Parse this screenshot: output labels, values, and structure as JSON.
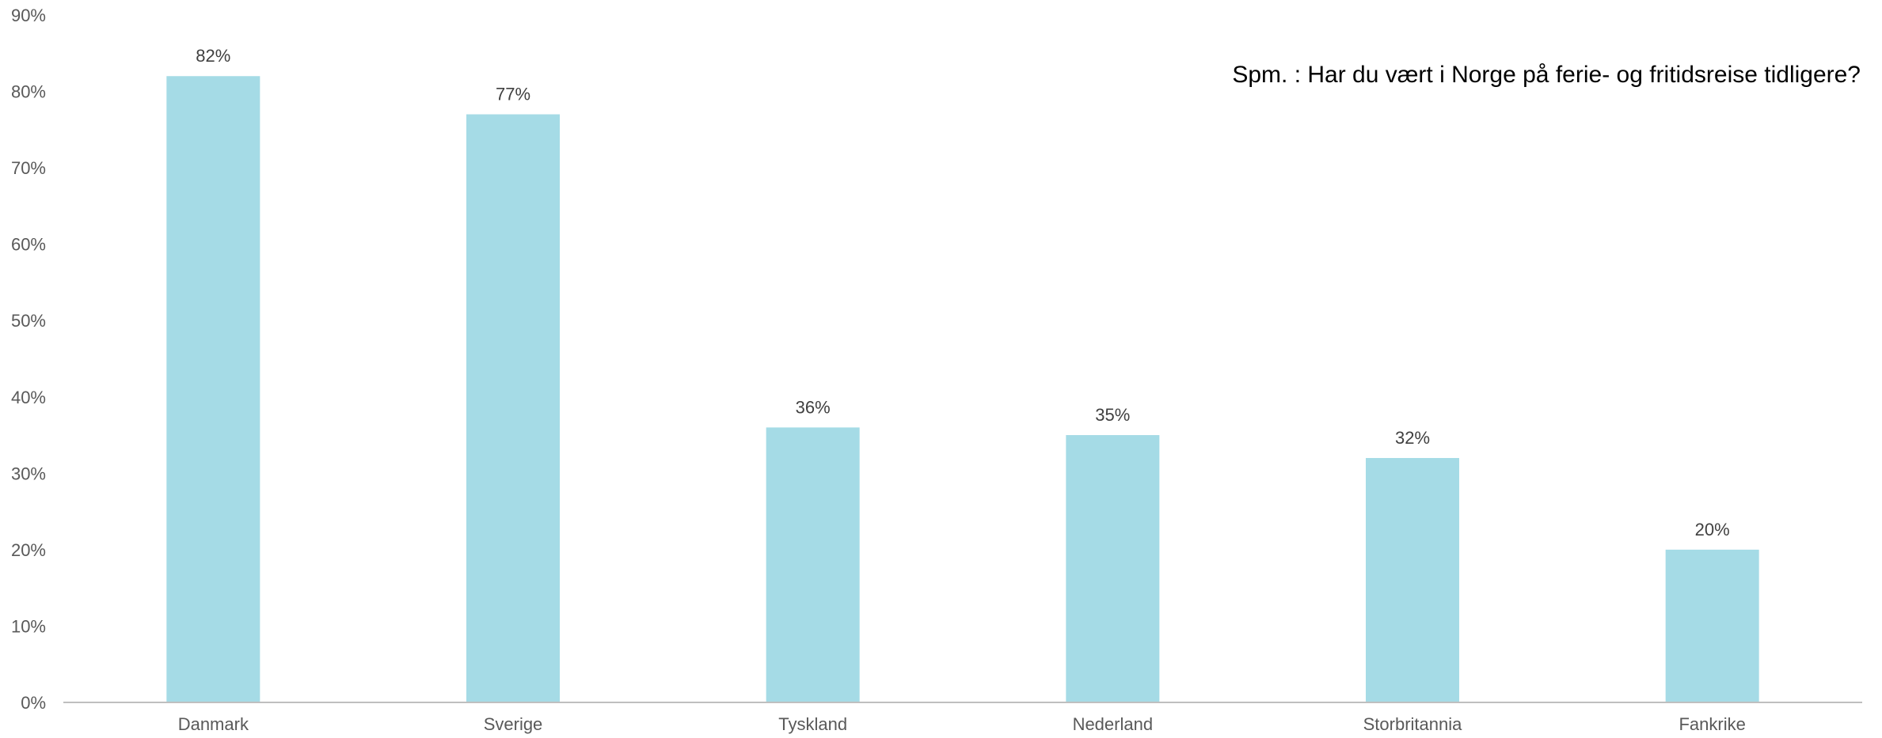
{
  "chart_data": {
    "type": "bar",
    "title": "Spm. : Har du vært i Norge på ferie- og fritidsreise tidligere?",
    "xlabel": "",
    "ylabel": "",
    "categories": [
      "Danmark",
      "Sverige",
      "Tyskland",
      "Nederland",
      "Storbritannia",
      "Fankrike"
    ],
    "values": [
      82,
      77,
      36,
      35,
      32,
      20
    ],
    "value_labels": [
      "82%",
      "77%",
      "36%",
      "35%",
      "32%",
      "20%"
    ],
    "ylim": [
      0,
      90
    ],
    "y_ticks": [
      0,
      10,
      20,
      30,
      40,
      50,
      60,
      70,
      80,
      90
    ],
    "y_tick_labels": [
      "0%",
      "10%",
      "20%",
      "30%",
      "40%",
      "50%",
      "60%",
      "70%",
      "80%",
      "90%"
    ],
    "grid": false,
    "legend": "none",
    "bar_color": "#A5DBE6",
    "axis_color": "#BFBFBF"
  }
}
